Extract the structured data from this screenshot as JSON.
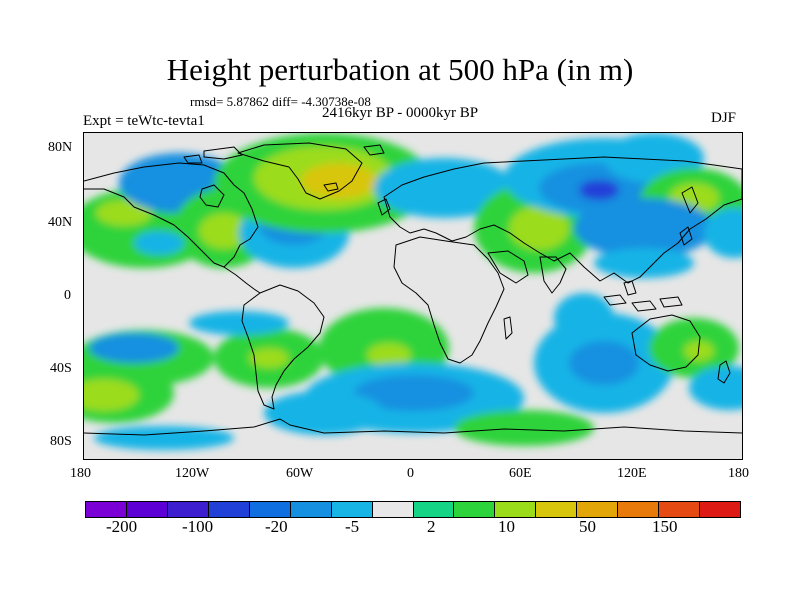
{
  "title": "Height perturbation at 500 hPa (in m)",
  "stats": "rmsd= 5.87862 diff= -4.30738e-08",
  "experiment": "Expt = teWtc-tevta1",
  "period": "2416kyr BP - 0000kyr BP",
  "season": "DJF",
  "axes": {
    "y_labels": [
      "80N",
      "40N",
      "0",
      "40S",
      "80S"
    ],
    "x_labels": [
      "180",
      "120W",
      "60W",
      "0",
      "60E",
      "120E",
      "180"
    ]
  },
  "colorbar": {
    "colors": [
      "#7a00d6",
      "#5d00d6",
      "#3d1fd0",
      "#2040d8",
      "#0f6ee0",
      "#1590e0",
      "#17b4e6",
      "#e8e8e8",
      "#16d486",
      "#2dd33a",
      "#9bdc1a",
      "#d8c60c",
      "#e3a608",
      "#e77a0a",
      "#e44a12",
      "#de1a14"
    ],
    "labels": [
      "-200",
      "-100",
      "-20",
      "-5",
      "2",
      "10",
      "50",
      "150"
    ]
  },
  "map_layers": {
    "background": "#e6e6e6",
    "coastline": "#000000"
  }
}
